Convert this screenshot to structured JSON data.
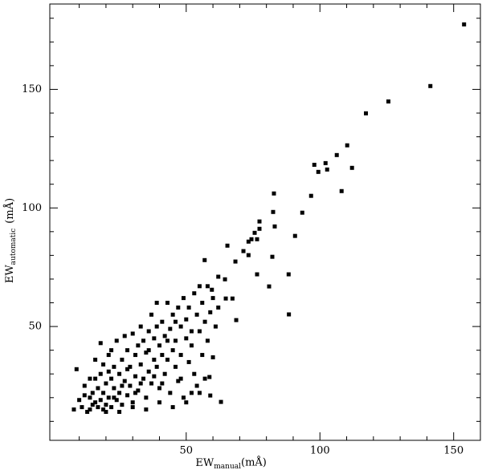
{
  "chart_data": {
    "type": "scatter",
    "x_label": {
      "main": "EW",
      "sub": "manual",
      "unit": "(mÅ)"
    },
    "y_label": {
      "main": "EW",
      "sub": "automatic",
      "unit": "(mÅ)"
    },
    "xlim": [
      -1,
      160
    ],
    "ylim": [
      2,
      186
    ],
    "xticks": [
      50,
      100,
      150
    ],
    "yticks": [
      50,
      100,
      150
    ],
    "xminorticks": [
      10,
      20,
      30,
      40,
      60,
      70,
      80,
      90,
      110,
      120,
      130,
      140
    ],
    "yminorticks": [
      10,
      20,
      30,
      40,
      60,
      70,
      80,
      90,
      110,
      120,
      130,
      140,
      160,
      170,
      180
    ],
    "color": "#000000",
    "x": [
      153.9,
      141.3,
      125.6,
      117.2,
      110.2,
      112,
      108.1,
      106.3,
      102.1,
      102.7,
      99.4,
      97.9,
      96.7,
      93.4,
      90.7,
      88.3,
      88.4,
      82.8,
      82.5,
      83.1,
      82.2,
      81,
      76.5,
      77.4,
      77.4,
      76.5,
      74.4,
      75.6,
      73.3,
      71.4,
      73.3,
      68.4,
      65.4,
      67.3,
      64.8,
      64.5,
      68.7,
      63,
      58.7,
      56.9,
      59,
      59.6,
      9,
      8,
      10,
      11,
      12,
      13,
      14,
      14,
      15,
      15,
      16,
      16,
      17,
      17,
      18,
      18,
      19,
      19,
      20,
      20,
      21,
      21,
      22,
      22,
      23,
      23,
      24,
      24,
      25,
      25,
      26,
      26,
      27,
      27,
      28,
      28,
      29,
      29,
      30,
      30,
      31,
      31,
      32,
      32,
      33,
      33,
      34,
      34,
      35,
      35,
      36,
      36,
      37,
      37,
      38,
      38,
      39,
      39,
      40,
      40,
      41,
      41,
      42,
      42,
      43,
      43,
      44,
      44,
      45,
      45,
      46,
      46,
      47,
      47,
      48,
      48,
      49,
      49,
      50,
      50,
      51,
      51,
      52,
      52,
      53,
      53,
      54,
      54,
      55,
      55,
      56,
      56,
      57,
      57,
      58,
      58,
      59,
      60,
      60,
      61,
      62,
      62,
      25,
      20,
      30,
      18,
      22,
      35,
      40,
      45,
      50,
      55,
      48,
      52,
      12,
      14,
      16,
      19,
      21,
      23,
      26,
      28,
      31,
      33,
      36,
      38,
      41,
      43,
      46,
      39
    ],
    "values": [
      177.4,
      151.4,
      144.9,
      139.9,
      126.4,
      116.9,
      107.1,
      122.3,
      118.9,
      116.2,
      115.2,
      118.2,
      105.1,
      98,
      88.2,
      72,
      55.1,
      106.1,
      98.3,
      92.2,
      79.4,
      66.9,
      72,
      94.3,
      91.2,
      86.8,
      86.8,
      89.5,
      85.8,
      81.8,
      80.1,
      77.4,
      84.1,
      61.8,
      61.8,
      69.9,
      52.7,
      18.2,
      28.7,
      78,
      20.9,
      65.5,
      32,
      15,
      19,
      16,
      25,
      14,
      15,
      20,
      22,
      17,
      36,
      28,
      16,
      24,
      30,
      19,
      34,
      22,
      17,
      26,
      38,
      20,
      28,
      16,
      33,
      24,
      44,
      19,
      30,
      22,
      36,
      17,
      46,
      27,
      40,
      21,
      33,
      25,
      47,
      18,
      38,
      29,
      42,
      23,
      50,
      34,
      28,
      44,
      20,
      39,
      48,
      31,
      55,
      26,
      45,
      36,
      33,
      50,
      42,
      24,
      52,
      38,
      46,
      30,
      60,
      36,
      49,
      22,
      40,
      55,
      33,
      44,
      58,
      27,
      50,
      38,
      62,
      20,
      45,
      53,
      35,
      58,
      48,
      42,
      64,
      30,
      55,
      25,
      67,
      48,
      60,
      38,
      52,
      28,
      67,
      44,
      56,
      62,
      37,
      50,
      71,
      58,
      14,
      14,
      16,
      43,
      40,
      15,
      18,
      16,
      18,
      22,
      28,
      22,
      21,
      28,
      18,
      15,
      31,
      20,
      25,
      32,
      22,
      26,
      40,
      29,
      26,
      44,
      52,
      60
    ]
  }
}
